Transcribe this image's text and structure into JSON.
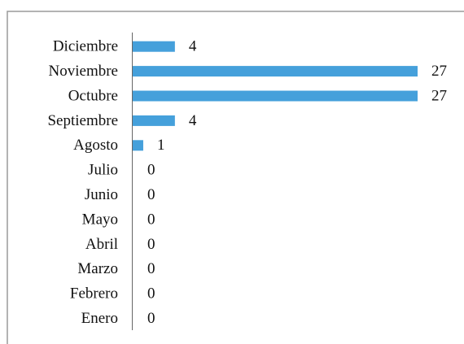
{
  "chart_data": {
    "type": "bar",
    "orientation": "horizontal",
    "categories": [
      "Diciembre",
      "Noviembre",
      "Octubre",
      "Septiembre",
      "Agosto",
      "Julio",
      "Junio",
      "Mayo",
      "Abril",
      "Marzo",
      "Febrero",
      "Enero"
    ],
    "values": [
      4,
      27,
      27,
      4,
      1,
      0,
      0,
      0,
      0,
      0,
      0,
      0
    ],
    "color": "#45a0db"
  }
}
